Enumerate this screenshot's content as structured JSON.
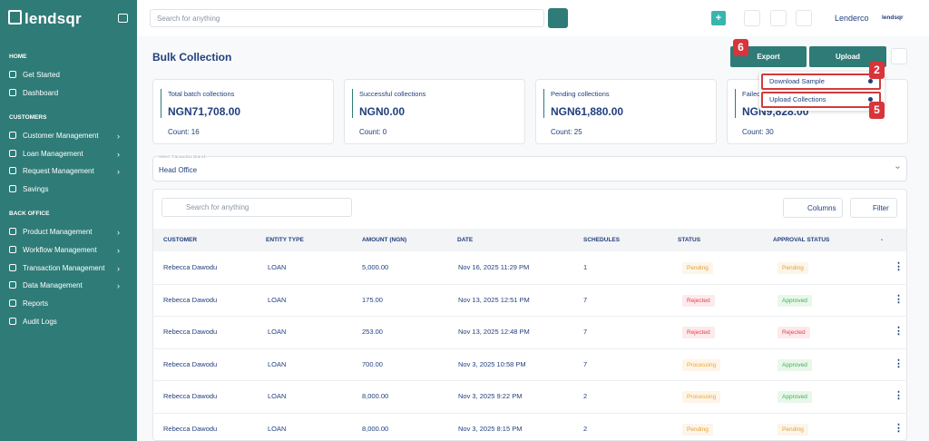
{
  "sidebar": {
    "logo": "lendsqr",
    "sections": [
      {
        "title": "HOME",
        "items": [
          {
            "label": "Get Started",
            "submenu": false
          },
          {
            "label": "Dashboard",
            "submenu": false
          }
        ]
      },
      {
        "title": "CUSTOMERS",
        "items": [
          {
            "label": "Customer Management",
            "submenu": true
          },
          {
            "label": "Loan Management",
            "submenu": true
          },
          {
            "label": "Request Management",
            "submenu": true
          },
          {
            "label": "Savings",
            "submenu": false
          }
        ]
      },
      {
        "title": "BACK OFFICE",
        "items": [
          {
            "label": "Product Management",
            "submenu": true
          },
          {
            "label": "Workflow Management",
            "submenu": true
          },
          {
            "label": "Transaction Management",
            "submenu": true
          },
          {
            "label": "Data Management",
            "submenu": true
          },
          {
            "label": "Reports",
            "submenu": false
          },
          {
            "label": "Audit Logs",
            "submenu": false
          }
        ]
      }
    ]
  },
  "topbar": {
    "search_placeholder": "Search for anything",
    "user": "Lenderco",
    "user_logo": "lendsqr"
  },
  "page": {
    "title": "Bulk Collection",
    "export_button": "Export",
    "upload_button": "Upload",
    "upload_menu": [
      "Download Sample",
      "Upload Collections"
    ],
    "badges": [
      "6",
      "2",
      "5"
    ]
  },
  "cards": [
    {
      "label": "Total batch collections",
      "amount": "NGN71,708.00",
      "count": "Count: 16"
    },
    {
      "label": "Successful collections",
      "amount": "NGN0.00",
      "count": "Count: 0"
    },
    {
      "label": "Pending collections",
      "amount": "NGN61,880.00",
      "count": "Count: 25"
    },
    {
      "label": "Failed collections",
      "amount": "NGN9,828.00",
      "count": "Count: 30"
    }
  ],
  "branch_select": {
    "label": "Select Transaction Branch",
    "value": "Head Office"
  },
  "table": {
    "search_placeholder": "Search for anything",
    "columns_button": "Columns",
    "filter_button": "Filter",
    "headers": [
      "CUSTOMER",
      "ENTITY TYPE",
      "AMOUNT (NGN)",
      "DATE",
      "SCHEDULES",
      "STATUS",
      "APPROVAL STATUS",
      "-"
    ],
    "status_colors": {
      "Pending": "#e3a23a",
      "Rejected": "#e2434f",
      "Approved": "#3bb54a",
      "Processing": "#f2a52b"
    },
    "rows": [
      [
        "Rebecca Dawodu",
        "LOAN",
        "5,000.00",
        "Nov 16, 2025 11:29 PM",
        "1",
        "Pending",
        "Pending"
      ],
      [
        "Rebecca Dawodu",
        "LOAN",
        "175.00",
        "Nov 13, 2025 12:51 PM",
        "7",
        "Rejected",
        "Approved"
      ],
      [
        "Rebecca Dawodu",
        "LOAN",
        "253.00",
        "Nov 13, 2025 12:48 PM",
        "7",
        "Rejected",
        "Rejected"
      ],
      [
        "Rebecca Dawodu",
        "LOAN",
        "700.00",
        "Nov 3, 2025 10:58 PM",
        "7",
        "Processing",
        "Approved"
      ],
      [
        "Rebecca Dawodu",
        "LOAN",
        "8,000.00",
        "Nov 3, 2025 9:22 PM",
        "2",
        "Processing",
        "Approved"
      ],
      [
        "Rebecca Dawodu",
        "LOAN",
        "8,000.00",
        "Nov 3, 2025 8:15 PM",
        "2",
        "Pending",
        "Pending"
      ]
    ]
  }
}
